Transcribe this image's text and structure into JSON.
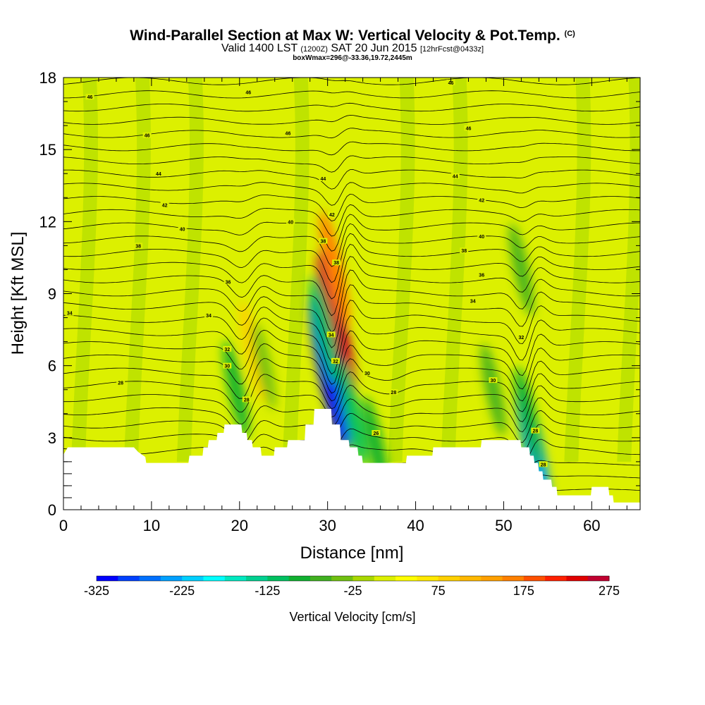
{
  "title": {
    "main": "Wind-Parallel Section at Max W: Vertical Velocity & Pot.Temp.",
    "copyright": "(C)",
    "valid_prefix": "Valid 1400 LST",
    "valid_zulu": "(1200Z)",
    "valid_date": "SAT 20 Jun 2015",
    "forecast": "[12hrFcst@0433z]",
    "box_info": "boxWmax=296@-33.36,19.72,2445m"
  },
  "colors": {
    "background_field": "#dcf000",
    "terrain": "#ffffff"
  },
  "chart_data": {
    "type": "contour-cross-section",
    "xlabel": "Distance [nm]",
    "ylabel": "Height [Kft MSL]",
    "xlim": [
      0,
      65.5
    ],
    "ylim": [
      0,
      18
    ],
    "xticks": [
      0,
      10,
      20,
      30,
      40,
      50,
      60
    ],
    "yticks": [
      0,
      3,
      6,
      9,
      12,
      15,
      18
    ],
    "terrain_profile": [
      [
        0,
        2.3
      ],
      [
        0.5,
        2.6
      ],
      [
        8,
        2.6
      ],
      [
        8.5,
        2.4
      ],
      [
        9.3,
        2.2
      ],
      [
        9.4,
        1.95
      ],
      [
        14.2,
        1.95
      ],
      [
        14.3,
        2.25
      ],
      [
        15.8,
        2.25
      ],
      [
        15.9,
        2.6
      ],
      [
        16.4,
        2.6
      ],
      [
        16.5,
        2.9
      ],
      [
        17.4,
        2.9
      ],
      [
        17.5,
        3.2
      ],
      [
        18.2,
        3.2
      ],
      [
        18.3,
        3.55
      ],
      [
        20.2,
        3.55
      ],
      [
        20.3,
        3.2
      ],
      [
        20.8,
        3.2
      ],
      [
        20.9,
        2.9
      ],
      [
        21.4,
        2.9
      ],
      [
        21.5,
        2.6
      ],
      [
        22.4,
        2.6
      ],
      [
        22.5,
        2.25
      ],
      [
        23.9,
        2.25
      ],
      [
        24,
        2.6
      ],
      [
        25.4,
        2.6
      ],
      [
        25.5,
        2.9
      ],
      [
        27.4,
        2.9
      ],
      [
        27.5,
        3.55
      ],
      [
        28.4,
        3.55
      ],
      [
        28.5,
        4.2
      ],
      [
        30.4,
        4.2
      ],
      [
        30.5,
        3.55
      ],
      [
        31.4,
        3.55
      ],
      [
        31.5,
        2.9
      ],
      [
        32.4,
        2.9
      ],
      [
        32.5,
        2.6
      ],
      [
        33.4,
        2.6
      ],
      [
        33.5,
        2.25
      ],
      [
        33.9,
        2.25
      ],
      [
        34,
        1.95
      ],
      [
        38.9,
        1.95
      ],
      [
        39,
        2.25
      ],
      [
        41.9,
        2.25
      ],
      [
        42,
        2.6
      ],
      [
        47.4,
        2.6
      ],
      [
        47.5,
        2.9
      ],
      [
        51.9,
        2.9
      ],
      [
        52,
        2.6
      ],
      [
        52.9,
        2.6
      ],
      [
        53,
        2.25
      ],
      [
        53.4,
        2.25
      ],
      [
        53.5,
        1.95
      ],
      [
        53.9,
        1.95
      ],
      [
        54,
        1.6
      ],
      [
        54.4,
        1.6
      ],
      [
        54.5,
        1.25
      ],
      [
        55.4,
        1.25
      ],
      [
        55.5,
        0.95
      ],
      [
        56,
        0.95
      ],
      [
        56.1,
        0.6
      ],
      [
        59.9,
        0.6
      ],
      [
        60,
        0.95
      ],
      [
        61.9,
        0.95
      ],
      [
        62,
        0.6
      ],
      [
        62.4,
        0.6
      ],
      [
        62.5,
        0.3
      ],
      [
        65.5,
        0.3
      ]
    ],
    "vertical_velocity_cells": [
      {
        "x": 31.0,
        "z": 7.6,
        "w": 280
      },
      {
        "x": 30.8,
        "z": 10.0,
        "w": 150
      },
      {
        "x": 30.2,
        "z": 5.8,
        "w": -320
      },
      {
        "x": 29.6,
        "z": 7.5,
        "w": -120
      },
      {
        "x": 32.8,
        "z": 4.0,
        "w": -110
      },
      {
        "x": 21.5,
        "z": 6.6,
        "w": 90
      },
      {
        "x": 19.6,
        "z": 5.0,
        "w": -80
      },
      {
        "x": 22.8,
        "z": 6.0,
        "w": -40
      },
      {
        "x": 53.4,
        "z": 2.5,
        "w": -230
      },
      {
        "x": 52.8,
        "z": 3.8,
        "w": -100
      },
      {
        "x": 52.0,
        "z": 10.0,
        "w": -60
      },
      {
        "x": 48.8,
        "z": 5.0,
        "w": -60
      },
      {
        "x": 35.5,
        "z": 2.6,
        "w": -90
      }
    ],
    "theta_contour_labels": [
      {
        "text": "46",
        "x": 3,
        "z": 17.2
      },
      {
        "text": "46",
        "x": 21,
        "z": 17.4
      },
      {
        "text": "46",
        "x": 44,
        "z": 17.8
      },
      {
        "text": "46",
        "x": 9.5,
        "z": 15.6
      },
      {
        "text": "46",
        "x": 25.5,
        "z": 15.7
      },
      {
        "text": "46",
        "x": 46,
        "z": 15.9
      },
      {
        "text": "44",
        "x": 10.8,
        "z": 14.0
      },
      {
        "text": "44",
        "x": 29.5,
        "z": 13.8
      },
      {
        "text": "44",
        "x": 44.5,
        "z": 13.9
      },
      {
        "text": "42",
        "x": 11.5,
        "z": 12.7
      },
      {
        "text": "42",
        "x": 30.5,
        "z": 12.3
      },
      {
        "text": "42",
        "x": 47.5,
        "z": 12.9
      },
      {
        "text": "40",
        "x": 13.5,
        "z": 11.7
      },
      {
        "text": "40",
        "x": 25.8,
        "z": 12.0
      },
      {
        "text": "40",
        "x": 47.5,
        "z": 11.4
      },
      {
        "text": "38",
        "x": 8.5,
        "z": 11.0
      },
      {
        "text": "38",
        "x": 29.5,
        "z": 11.2
      },
      {
        "text": "38",
        "x": 31,
        "z": 10.3
      },
      {
        "text": "38",
        "x": 45.5,
        "z": 10.8
      },
      {
        "text": "36",
        "x": 18.7,
        "z": 9.5
      },
      {
        "text": "36",
        "x": 47.5,
        "z": 9.8
      },
      {
        "text": "34",
        "x": 0.7,
        "z": 8.2
      },
      {
        "text": "34",
        "x": 16.5,
        "z": 8.1
      },
      {
        "text": "34",
        "x": 46.5,
        "z": 8.7
      },
      {
        "text": "34",
        "x": 30.4,
        "z": 7.3
      },
      {
        "text": "32",
        "x": 18.6,
        "z": 6.7
      },
      {
        "text": "32",
        "x": 52,
        "z": 7.2
      },
      {
        "text": "32",
        "x": 30.9,
        "z": 6.2
      },
      {
        "text": "30",
        "x": 18.6,
        "z": 6.0
      },
      {
        "text": "30",
        "x": 34.5,
        "z": 5.7
      },
      {
        "text": "30",
        "x": 48.8,
        "z": 5.4
      },
      {
        "text": "28",
        "x": 6.5,
        "z": 5.3
      },
      {
        "text": "28",
        "x": 37.5,
        "z": 4.9
      },
      {
        "text": "28",
        "x": 20.8,
        "z": 4.6
      },
      {
        "text": "28",
        "x": 53.6,
        "z": 3.3
      },
      {
        "text": "28",
        "x": 54.5,
        "z": 1.9
      },
      {
        "text": "26",
        "x": 35.5,
        "z": 3.2
      }
    ],
    "colorbar": {
      "label": "Vertical Velocity [cm/s]",
      "min": -325,
      "max": 275,
      "step": 25,
      "tick_labels": [
        "-325",
        "-225",
        "-125",
        "-25",
        "75",
        "175",
        "275"
      ],
      "colors": [
        "#0000ff",
        "#0040ff",
        "#0070ff",
        "#00a0ff",
        "#00cfff",
        "#00ffff",
        "#00e8c0",
        "#00d090",
        "#00c060",
        "#10b030",
        "#40b020",
        "#70c010",
        "#a8d800",
        "#dcf000",
        "#ffff00",
        "#ffe800",
        "#ffd000",
        "#ffb800",
        "#ffa000",
        "#ff8000",
        "#ff5000",
        "#ff2000",
        "#e00000",
        "#c00030"
      ]
    }
  }
}
